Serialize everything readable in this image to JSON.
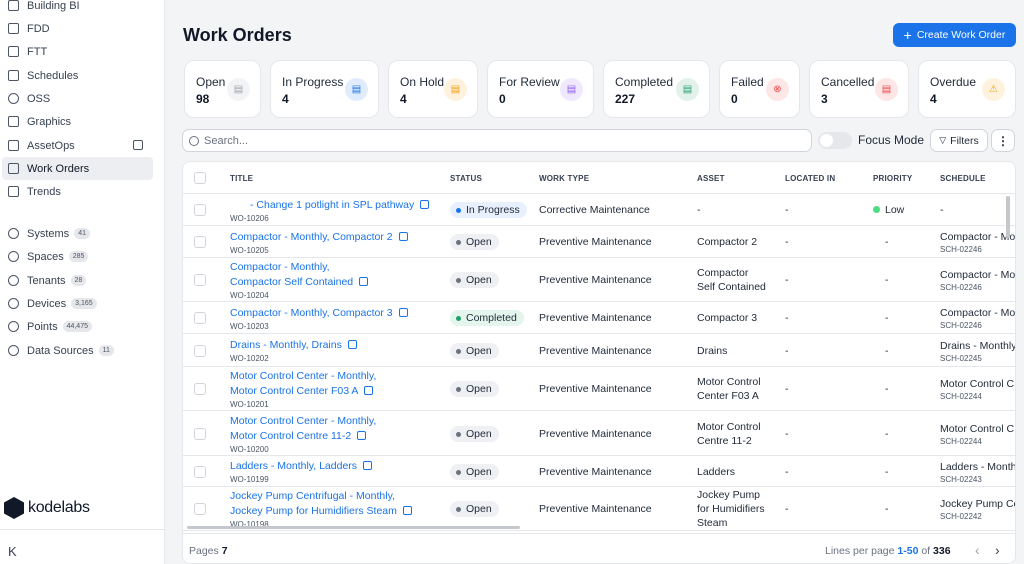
{
  "sidebar": {
    "items": [
      {
        "label": "Building BI"
      },
      {
        "label": "FDD"
      },
      {
        "label": "FTT"
      },
      {
        "label": "Schedules"
      },
      {
        "label": "OSS"
      },
      {
        "label": "Graphics"
      },
      {
        "label": "AssetOps"
      },
      {
        "label": "Work Orders"
      },
      {
        "label": "Trends"
      }
    ],
    "data_items": [
      {
        "label": "Systems",
        "count": "41"
      },
      {
        "label": "Spaces",
        "count": "285"
      },
      {
        "label": "Tenants",
        "count": "28"
      },
      {
        "label": "Devices",
        "count": "3,165"
      },
      {
        "label": "Points",
        "count": "44,475"
      },
      {
        "label": "Data Sources",
        "count": "11"
      }
    ],
    "logo_text": "kodelabs",
    "collapse_icon": "K"
  },
  "header": {
    "title": "Work Orders",
    "create_label": "Create Work Order"
  },
  "stats": [
    {
      "label": "Open",
      "value": "98",
      "icon": "doc-icon",
      "color": "#9ca3af"
    },
    {
      "label": "In Progress",
      "value": "4",
      "icon": "doc-icon",
      "color": "#1a73e8"
    },
    {
      "label": "On Hold",
      "value": "4",
      "icon": "doc-icon",
      "color": "#f59e0b"
    },
    {
      "label": "For Review",
      "value": "0",
      "icon": "doc-icon",
      "color": "#8b5cf6"
    },
    {
      "label": "Completed",
      "value": "227",
      "icon": "doc-icon",
      "color": "#22a06b"
    },
    {
      "label": "Failed",
      "value": "0",
      "icon": "x-circle-icon",
      "color": "#ef4444"
    },
    {
      "label": "Cancelled",
      "value": "3",
      "icon": "doc-icon",
      "color": "#ef4444"
    },
    {
      "label": "Overdue",
      "value": "4",
      "icon": "warning-icon",
      "color": "#f59e0b"
    }
  ],
  "toolbar": {
    "search_placeholder": "Search...",
    "focus_mode_label": "Focus Mode",
    "filters_label": "Filters",
    "more_label": "⋮"
  },
  "table": {
    "columns": [
      "TITLE",
      "STATUS",
      "WORK TYPE",
      "ASSET",
      "LOCATED IN",
      "PRIORITY",
      "SCHEDULE"
    ],
    "rows": [
      {
        "title": [
          "- Change 1 potlight in SPL pathway"
        ],
        "id": "WO-10206",
        "status": "In Progress",
        "work_type": "Corrective Maintenance",
        "asset": [
          "-"
        ],
        "located": "-",
        "priority": "Low",
        "schedule": "-",
        "schedule_id": ""
      },
      {
        "title": [
          "Compactor - Monthly, Compactor 2"
        ],
        "id": "WO-10205",
        "status": "Open",
        "work_type": "Preventive Maintenance",
        "asset": [
          "Compactor 2"
        ],
        "located": "-",
        "priority": "-",
        "schedule": "Compactor - Mo",
        "schedule_id": "SCH-02246"
      },
      {
        "title": [
          "Compactor - Monthly,",
          "Compactor Self Contained"
        ],
        "id": "WO-10204",
        "status": "Open",
        "work_type": "Preventive Maintenance",
        "asset": [
          "Compactor",
          "Self Contained"
        ],
        "located": "-",
        "priority": "-",
        "schedule": "Compactor - Mo",
        "schedule_id": "SCH-02246"
      },
      {
        "title": [
          "Compactor - Monthly, Compactor 3"
        ],
        "id": "WO-10203",
        "status": "Completed",
        "work_type": "Preventive Maintenance",
        "asset": [
          "Compactor 3"
        ],
        "located": "-",
        "priority": "-",
        "schedule": "Compactor - Mo",
        "schedule_id": "SCH-02246"
      },
      {
        "title": [
          "Drains - Monthly, Drains"
        ],
        "id": "WO-10202",
        "status": "Open",
        "work_type": "Preventive Maintenance",
        "asset": [
          "Drains"
        ],
        "located": "-",
        "priority": "-",
        "schedule": "Drains - Monthly",
        "schedule_id": "SCH-02245"
      },
      {
        "title": [
          "Motor Control Center - Monthly,",
          "Motor Control Center F03 A"
        ],
        "id": "WO-10201",
        "status": "Open",
        "work_type": "Preventive Maintenance",
        "asset": [
          "Motor Control",
          "Center F03 A"
        ],
        "located": "-",
        "priority": "-",
        "schedule": "Motor Control C",
        "schedule_id": "SCH-02244"
      },
      {
        "title": [
          "Motor Control Center - Monthly,",
          "Motor Control Centre 11-2"
        ],
        "id": "WO-10200",
        "status": "Open",
        "work_type": "Preventive Maintenance",
        "asset": [
          "Motor Control",
          "Centre 11-2"
        ],
        "located": "-",
        "priority": "-",
        "schedule": "Motor Control C",
        "schedule_id": "SCH-02244"
      },
      {
        "title": [
          "Ladders - Monthly, Ladders"
        ],
        "id": "WO-10199",
        "status": "Open",
        "work_type": "Preventive Maintenance",
        "asset": [
          "Ladders"
        ],
        "located": "-",
        "priority": "-",
        "schedule": "Ladders - Month",
        "schedule_id": "SCH-02243"
      },
      {
        "title": [
          "Jockey Pump Centrifugal - Monthly,",
          "Jockey Pump for Humidifiers Steam"
        ],
        "id": "WO-10198",
        "status": "Open",
        "work_type": "Preventive Maintenance",
        "asset": [
          "Jockey Pump",
          "for Humidifiers",
          "Steam"
        ],
        "located": "-",
        "priority": "-",
        "schedule": "Jockey Pump Ce",
        "schedule_id": "SCH-02242"
      }
    ]
  },
  "footer": {
    "pages_label": "Pages",
    "pages_value": "7",
    "lines_label": "Lines per page",
    "range": "1-50",
    "of_label": "of",
    "total": "336"
  },
  "colors": {
    "accent": "#1a73e8",
    "low_priority": "#4ade80"
  }
}
